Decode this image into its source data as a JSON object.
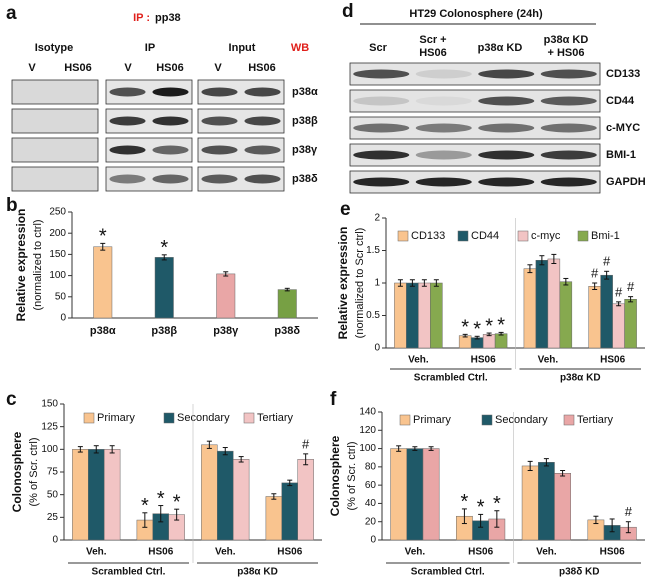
{
  "figure_a": {
    "panel": "a",
    "ip_label": "IP :",
    "ip_target": "pp38",
    "columns": [
      "Isotype",
      "IP",
      "Input"
    ],
    "wb": "WB",
    "lanes": [
      "V",
      "HS06",
      "V",
      "HS06",
      "V",
      "HS06"
    ],
    "rows": [
      "p38α",
      "p38β",
      "p38γ",
      "p38δ"
    ]
  },
  "figure_d": {
    "panel": "d",
    "title": "HT29 Colonosphere (24h)",
    "lanes": [
      [
        "Scr"
      ],
      [
        "Scr +",
        "HS06"
      ],
      [
        "p38α KD"
      ],
      [
        "p38α KD",
        "+ HS06"
      ]
    ],
    "rows": [
      "CD133",
      "CD44",
      "c-MYC",
      "BMI-1",
      "GAPDH"
    ]
  },
  "chart_data": [
    {
      "panel": "b",
      "type": "bar",
      "ylabel": "Relative expression",
      "ylabel_sub": "(normalized to ctrl)",
      "categories": [
        "p38α",
        "p38β",
        "p38γ",
        "p38δ"
      ],
      "values": [
        168,
        143,
        104,
        67
      ],
      "errors": [
        8,
        6,
        5,
        3
      ],
      "notes": [
        "*",
        "*",
        null,
        null
      ],
      "colors": [
        "#f9c48f",
        "#1f5968",
        "#e9a6a6",
        "#77a044"
      ],
      "ylim": [
        0,
        250
      ],
      "yticks": [
        0,
        50,
        100,
        150,
        200,
        250
      ]
    },
    {
      "panel": "e",
      "type": "grouped_bar",
      "ylabel": "Relative expression",
      "ylabel_sub": "(normalized to Scr ctrl)",
      "categories": [
        "Veh.",
        "HS06",
        "Veh.",
        "HS06"
      ],
      "groups": [
        "Scrambled Ctrl.",
        "p38α KD"
      ],
      "series": [
        {
          "name": "CD133",
          "color": "#f9c48f",
          "values": [
            1,
            0.19,
            1.22,
            0.95
          ],
          "errors": [
            0.05,
            0.02,
            0.06,
            0.05
          ],
          "notes": [
            null,
            "*",
            null,
            "#"
          ]
        },
        {
          "name": "CD44",
          "color": "#1f5968",
          "values": [
            1,
            0.16,
            1.35,
            1.12
          ],
          "errors": [
            0.05,
            0.02,
            0.07,
            0.06
          ],
          "notes": [
            null,
            "*",
            null,
            "#"
          ]
        },
        {
          "name": "c-myc",
          "color": "#f2c4c4",
          "values": [
            1,
            0.21,
            1.37,
            0.68
          ],
          "errors": [
            0.05,
            0.02,
            0.07,
            0.03
          ],
          "notes": [
            null,
            "*",
            null,
            "#"
          ]
        },
        {
          "name": "Bmi-1",
          "color": "#86a94f",
          "values": [
            1,
            0.22,
            1.02,
            0.75
          ],
          "errors": [
            0.05,
            0.02,
            0.05,
            0.04
          ],
          "notes": [
            null,
            "*",
            null,
            "#"
          ]
        }
      ],
      "ylim": [
        0,
        2
      ],
      "yticks": [
        0,
        0.5,
        1,
        1.5,
        2
      ]
    },
    {
      "panel": "c",
      "type": "grouped_bar",
      "ylabel": "Colonosphere",
      "ylabel_sub": "(% of Scr. ctrl)",
      "categories": [
        "Veh.",
        "HS06",
        "Veh.",
        "HS06"
      ],
      "groups": [
        "Scrambled Ctrl.",
        "p38α KD"
      ],
      "series": [
        {
          "name": "Primary",
          "color": "#f9c48f",
          "values": [
            100,
            22,
            105,
            48
          ],
          "errors": [
            3,
            8,
            4,
            3
          ],
          "notes": [
            null,
            "*",
            null,
            null
          ]
        },
        {
          "name": "Secondary",
          "color": "#1f5968",
          "values": [
            100,
            29,
            98,
            63
          ],
          "errors": [
            4,
            9,
            4,
            3
          ],
          "notes": [
            null,
            "*",
            null,
            null
          ]
        },
        {
          "name": "Tertiary",
          "color": "#f2c4c4",
          "values": [
            100,
            28,
            89,
            89
          ],
          "errors": [
            4,
            6,
            3,
            6
          ],
          "notes": [
            null,
            "*",
            null,
            "#"
          ]
        }
      ],
      "ylim": [
        0,
        150
      ],
      "yticks": [
        0,
        25,
        50,
        75,
        100,
        125,
        150
      ]
    },
    {
      "panel": "f",
      "type": "grouped_bar",
      "ylabel": "Colonosphere",
      "ylabel_sub": "(% of Scr. ctrl)",
      "categories": [
        "Veh.",
        "HS06",
        "Veh.",
        "HS06"
      ],
      "groups": [
        "Scrambled Ctrl.",
        "p38δ KD"
      ],
      "series": [
        {
          "name": "Primary",
          "color": "#f9c48f",
          "values": [
            100,
            26,
            81,
            22
          ],
          "errors": [
            3,
            8,
            5,
            4
          ],
          "notes": [
            null,
            "*",
            null,
            null
          ]
        },
        {
          "name": "Secondary",
          "color": "#1f5968",
          "values": [
            100,
            21,
            85,
            16
          ],
          "errors": [
            2,
            7,
            4,
            7
          ],
          "notes": [
            null,
            "*",
            null,
            null
          ]
        },
        {
          "name": "Tertiary",
          "color": "#e9a6a6",
          "values": [
            100,
            23,
            73,
            14
          ],
          "errors": [
            2,
            9,
            3,
            6
          ],
          "notes": [
            null,
            "*",
            null,
            "#"
          ]
        }
      ],
      "ylim": [
        0,
        140
      ],
      "yticks": [
        0,
        20,
        40,
        60,
        80,
        100,
        120,
        140
      ]
    }
  ]
}
